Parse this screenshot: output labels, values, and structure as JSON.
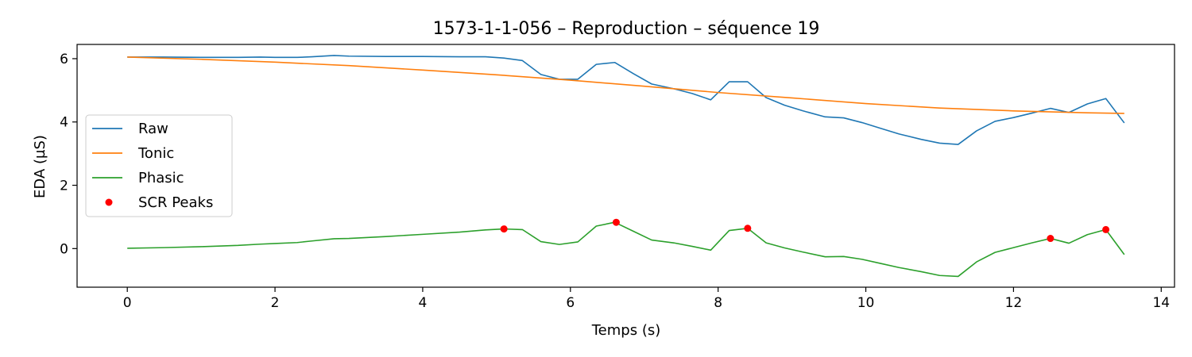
{
  "chart_data": {
    "type": "line",
    "title": "1573-1-1-056 – Reproduction – séquence 19",
    "xlabel": "Temps (s)",
    "ylabel": "EDA (µS)",
    "xlim": [
      -0.68,
      14.18
    ],
    "ylim": [
      -1.22,
      6.45
    ],
    "x_ticks": [
      0,
      2,
      4,
      6,
      8,
      10,
      12,
      14
    ],
    "y_ticks": [
      0,
      2,
      4,
      6
    ],
    "grid": false,
    "legend_position": "center-left",
    "series": [
      {
        "name": "Raw",
        "color": "#1f77b4",
        "x": [
          0,
          0.5,
          1,
          1.5,
          1.8,
          2,
          2.3,
          2.5,
          2.8,
          3,
          3.5,
          4,
          4.5,
          4.85,
          5.1,
          5.35,
          5.6,
          5.85,
          6.1,
          6.35,
          6.6,
          6.85,
          7.1,
          7.4,
          7.65,
          7.9,
          8.15,
          8.4,
          8.65,
          8.9,
          9.15,
          9.45,
          9.7,
          9.95,
          10.2,
          10.45,
          10.75,
          11,
          11.25,
          11.5,
          11.75,
          12,
          12.25,
          12.5,
          12.75,
          13,
          13.25,
          13.5
        ],
        "y": [
          6.05,
          6.05,
          6.04,
          6.04,
          6.05,
          6.04,
          6.04,
          6.06,
          6.1,
          6.08,
          6.07,
          6.07,
          6.06,
          6.06,
          6.02,
          5.94,
          5.5,
          5.35,
          5.35,
          5.82,
          5.88,
          5.53,
          5.2,
          5.05,
          4.9,
          4.7,
          5.27,
          5.27,
          4.77,
          4.53,
          4.35,
          4.16,
          4.13,
          3.98,
          3.8,
          3.62,
          3.45,
          3.33,
          3.29,
          3.72,
          4.02,
          4.14,
          4.28,
          4.43,
          4.3,
          4.57,
          4.74,
          3.97
        ]
      },
      {
        "name": "Tonic",
        "color": "#ff7f0e",
        "x": [
          0,
          1,
          2,
          3,
          4,
          5,
          6,
          7,
          8,
          9,
          10,
          11,
          12,
          13,
          13.5
        ],
        "y": [
          6.05,
          5.98,
          5.89,
          5.78,
          5.64,
          5.49,
          5.32,
          5.13,
          4.93,
          4.76,
          4.58,
          4.44,
          4.35,
          4.29,
          4.27
        ]
      },
      {
        "name": "Phasic",
        "color": "#2ca02c",
        "x": [
          0,
          0.5,
          1,
          1.5,
          1.8,
          2,
          2.3,
          2.5,
          2.8,
          3,
          3.5,
          4,
          4.5,
          4.85,
          5.1,
          5.35,
          5.6,
          5.85,
          6.1,
          6.35,
          6.6,
          6.85,
          7.1,
          7.4,
          7.65,
          7.9,
          8.15,
          8.4,
          8.65,
          8.9,
          9.15,
          9.45,
          9.7,
          9.95,
          10.2,
          10.45,
          10.75,
          11,
          11.25,
          11.5,
          11.75,
          12,
          12.25,
          12.5,
          12.75,
          13,
          13.25,
          13.5
        ],
        "y": [
          0.01,
          0.03,
          0.06,
          0.1,
          0.14,
          0.16,
          0.19,
          0.24,
          0.31,
          0.32,
          0.38,
          0.45,
          0.52,
          0.59,
          0.62,
          0.6,
          0.22,
          0.13,
          0.21,
          0.71,
          0.83,
          0.55,
          0.27,
          0.18,
          0.07,
          -0.05,
          0.57,
          0.64,
          0.18,
          0.02,
          -0.11,
          -0.26,
          -0.25,
          -0.34,
          -0.47,
          -0.6,
          -0.73,
          -0.85,
          -0.88,
          -0.42,
          -0.12,
          0.03,
          0.18,
          0.32,
          0.17,
          0.44,
          0.6,
          -0.19
        ]
      }
    ],
    "peaks": {
      "name": "SCR Peaks",
      "color": "#ff0000",
      "x": [
        5.1,
        6.62,
        8.4,
        12.5,
        13.25
      ],
      "y": [
        0.62,
        0.83,
        0.64,
        0.32,
        0.6
      ]
    }
  }
}
